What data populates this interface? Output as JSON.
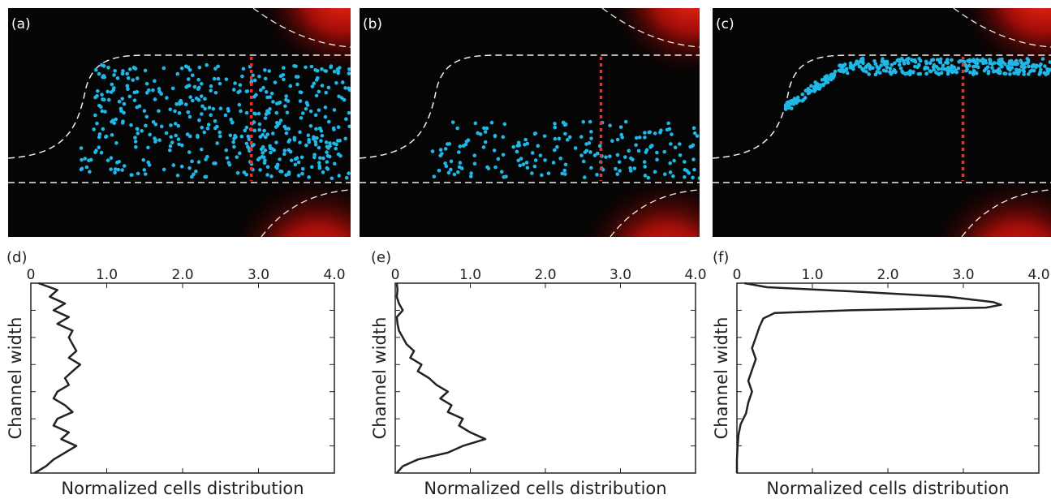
{
  "images": [
    {
      "label": "(a)"
    },
    {
      "label": "(b)"
    },
    {
      "label": "(c)"
    }
  ],
  "chart_data": [
    {
      "type": "line",
      "panel": "(d)",
      "xlabel": "Normalized cells distribution",
      "ylabel": "Channel width",
      "xlim": [
        0,
        4
      ],
      "xticks": [
        0,
        {
          "value": 1,
          "label": "1.0"
        },
        {
          "value": 2,
          "label": "2.0"
        },
        {
          "value": 3,
          "label": "3.0"
        },
        {
          "value": 4,
          "label": "4.0"
        }
      ],
      "ylim": [
        0,
        7
      ],
      "yticks": [
        1,
        2,
        3,
        4,
        5,
        6
      ],
      "series": [
        {
          "color": "#222222",
          "y": [
            0,
            0.25,
            0.5,
            0.75,
            1,
            1.25,
            1.5,
            1.75,
            2,
            2.25,
            2.5,
            2.75,
            3,
            3.25,
            3.5,
            3.75,
            4,
            4.25,
            4.5,
            4.75,
            5,
            5.25,
            5.5,
            5.75,
            6,
            6.25,
            6.5,
            6.75,
            7
          ],
          "values": [
            0.1,
            0.35,
            0.25,
            0.45,
            0.3,
            0.5,
            0.35,
            0.55,
            0.5,
            0.55,
            0.6,
            0.5,
            0.65,
            0.55,
            0.45,
            0.5,
            0.35,
            0.3,
            0.45,
            0.55,
            0.35,
            0.3,
            0.5,
            0.4,
            0.6,
            0.45,
            0.3,
            0.2,
            0.05
          ]
        }
      ]
    },
    {
      "type": "line",
      "panel": "(e)",
      "xlabel": "Normalized cells distribution",
      "ylabel": "Channel width",
      "xlim": [
        0,
        4
      ],
      "xticks": [
        0,
        {
          "value": 1,
          "label": "1.0"
        },
        {
          "value": 2,
          "label": "2.0"
        },
        {
          "value": 3,
          "label": "3.0"
        },
        {
          "value": 4,
          "label": "4.0"
        }
      ],
      "ylim": [
        0,
        7
      ],
      "yticks": [
        1,
        2,
        3,
        4,
        5,
        6
      ],
      "series": [
        {
          "color": "#222222",
          "y": [
            0,
            0.25,
            0.5,
            0.75,
            1,
            1.25,
            1.5,
            1.75,
            2,
            2.25,
            2.5,
            2.75,
            3,
            3.25,
            3.5,
            3.75,
            4,
            4.25,
            4.5,
            4.75,
            5,
            5.25,
            5.5,
            5.75,
            6,
            6.25,
            6.5,
            6.75,
            7
          ],
          "values": [
            0.02,
            0.03,
            0.02,
            0.05,
            0.1,
            0.02,
            0.03,
            0.05,
            0.1,
            0.15,
            0.25,
            0.2,
            0.35,
            0.3,
            0.45,
            0.55,
            0.7,
            0.6,
            0.75,
            0.7,
            0.9,
            0.85,
            1.0,
            1.2,
            0.9,
            0.7,
            0.3,
            0.1,
            0.02
          ]
        }
      ]
    },
    {
      "type": "line",
      "panel": "(f)",
      "xlabel": "Normalized cells distribution",
      "ylabel": "Channel width",
      "xlim": [
        0,
        4
      ],
      "xticks": [
        0,
        {
          "value": 1,
          "label": "1.0"
        },
        {
          "value": 2,
          "label": "2.0"
        },
        {
          "value": 3,
          "label": "3.0"
        },
        {
          "value": 4,
          "label": "4.0"
        }
      ],
      "ylim": [
        0,
        7
      ],
      "yticks": [
        1,
        2,
        3,
        4,
        5,
        6
      ],
      "series": [
        {
          "color": "#222222",
          "y": [
            0,
            0.15,
            0.3,
            0.5,
            0.7,
            0.8,
            0.9,
            1.0,
            1.1,
            1.3,
            1.6,
            2.0,
            2.4,
            2.8,
            3.2,
            3.6,
            4.0,
            4.4,
            4.8,
            5.2,
            5.6,
            6.0,
            6.5,
            7.0
          ],
          "values": [
            0.1,
            0.4,
            1.5,
            2.8,
            3.4,
            3.5,
            3.3,
            1.5,
            0.5,
            0.35,
            0.3,
            0.25,
            0.2,
            0.25,
            0.2,
            0.15,
            0.2,
            0.15,
            0.12,
            0.05,
            0.02,
            0.01,
            0,
            0
          ]
        }
      ]
    }
  ]
}
